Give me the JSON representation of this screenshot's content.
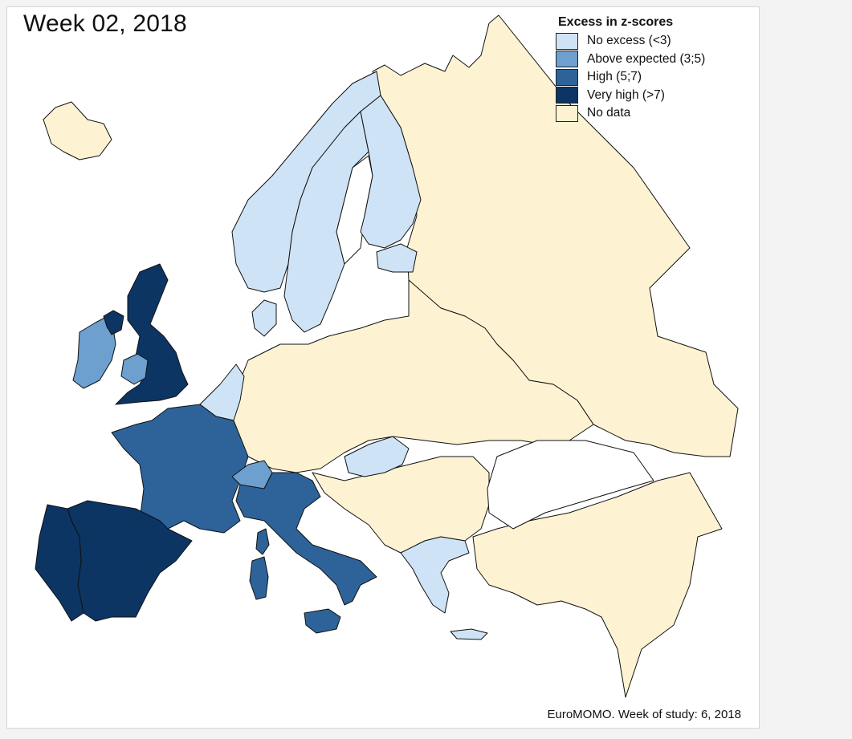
{
  "map": {
    "title": "Week 02, 2018",
    "credit": "EuroMOMO. Week of study: 6, 2018"
  },
  "legend": {
    "title": "Excess in z-scores",
    "items": [
      {
        "label": "No excess (<3)",
        "color": "#cfe3f6"
      },
      {
        "label": "Above expected (3;5)",
        "color": "#6d9fcf"
      },
      {
        "label": "High (5;7)",
        "color": "#2d6399"
      },
      {
        "label": "Very high (>7)",
        "color": "#0c3564"
      },
      {
        "label": "No data",
        "color": "#fdf3d3"
      }
    ]
  },
  "regions": [
    {
      "id": "iceland",
      "category": "No data"
    },
    {
      "id": "norway",
      "category": "No excess (<3)"
    },
    {
      "id": "sweden",
      "category": "No excess (<3)"
    },
    {
      "id": "finland",
      "category": "No excess (<3)"
    },
    {
      "id": "estonia",
      "category": "No excess (<3)"
    },
    {
      "id": "denmark",
      "category": "No excess (<3)"
    },
    {
      "id": "belgium-netherlands",
      "category": "No excess (<3)"
    },
    {
      "id": "hungary",
      "category": "No excess (<3)"
    },
    {
      "id": "greece",
      "category": "No excess (<3)"
    },
    {
      "id": "ireland",
      "category": "Above expected (3;5)"
    },
    {
      "id": "wales",
      "category": "Above expected (3;5)"
    },
    {
      "id": "switzerland",
      "category": "Above expected (3;5)"
    },
    {
      "id": "france",
      "category": "High (5;7)"
    },
    {
      "id": "italy",
      "category": "High (5;7)"
    },
    {
      "id": "sardinia",
      "category": "High (5;7)"
    },
    {
      "id": "sicily",
      "category": "High (5;7)"
    },
    {
      "id": "corsica",
      "category": "High (5;7)"
    },
    {
      "id": "britain",
      "category": "Very high (>7)"
    },
    {
      "id": "northern-ireland",
      "category": "Very high (>7)"
    },
    {
      "id": "spain",
      "category": "Very high (>7)"
    },
    {
      "id": "portugal",
      "category": "Very high (>7)"
    },
    {
      "id": "russia",
      "category": "No data"
    },
    {
      "id": "central-europe",
      "category": "No data"
    },
    {
      "id": "eastern-europe",
      "category": "No data"
    },
    {
      "id": "balkans",
      "category": "No data"
    },
    {
      "id": "turkey-caucasus",
      "category": "No data"
    }
  ]
}
